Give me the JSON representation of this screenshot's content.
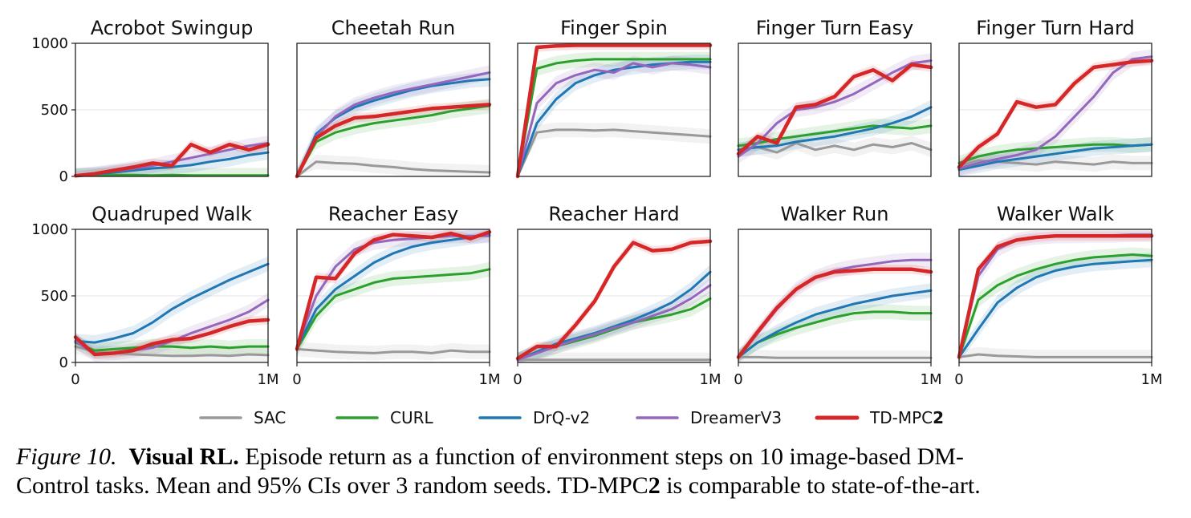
{
  "chart_data": {
    "type": "line",
    "x_ticks": [
      "0",
      "1M"
    ],
    "y_ticks": [
      "0",
      "500",
      "1000"
    ],
    "xlim": [
      0,
      1000000
    ],
    "ylim": [
      0,
      1000
    ],
    "grid": "horizontal",
    "legend_placement": "bottom",
    "series_meta": [
      {
        "name": "SAC",
        "color": "#999999"
      },
      {
        "name": "CURL",
        "color": "#2ca02c"
      },
      {
        "name": "DrQ-v2",
        "color": "#1f77b4"
      },
      {
        "name": "DreamerV3",
        "color": "#9467bd"
      },
      {
        "name": "TD-MPC",
        "suffix": "2",
        "color": "#d62728"
      }
    ],
    "panels": [
      {
        "title": "Acrobot Swingup",
        "x": [
          0,
          0.1,
          0.2,
          0.3,
          0.4,
          0.5,
          0.6,
          0.7,
          0.8,
          0.9,
          1.0
        ],
        "series": [
          {
            "name": "SAC",
            "values": []
          },
          {
            "name": "CURL",
            "values": [
              5,
              8,
              10,
              10,
              8,
              10,
              8,
              8,
              8,
              8,
              8
            ]
          },
          {
            "name": "DrQ-v2",
            "values": [
              5,
              15,
              30,
              45,
              60,
              70,
              85,
              110,
              130,
              160,
              180
            ]
          },
          {
            "name": "DreamerV3",
            "values": [
              5,
              20,
              40,
              60,
              80,
              110,
              140,
              170,
              200,
              230,
              250
            ]
          },
          {
            "name": "TD-MPC2",
            "values": [
              5,
              20,
              45,
              70,
              100,
              80,
              240,
              180,
              240,
              200,
              240
            ]
          }
        ]
      },
      {
        "title": "Cheetah Run",
        "x": [
          0,
          0.1,
          0.2,
          0.3,
          0.4,
          0.5,
          0.6,
          0.7,
          0.8,
          0.9,
          1.0
        ],
        "series": [
          {
            "name": "SAC",
            "values": [
              0,
              110,
              100,
              95,
              80,
              70,
              55,
              45,
              40,
              35,
              30
            ]
          },
          {
            "name": "CURL",
            "values": [
              0,
              260,
              330,
              370,
              400,
              420,
              440,
              460,
              490,
              510,
              530
            ]
          },
          {
            "name": "DrQ-v2",
            "values": [
              0,
              320,
              440,
              520,
              570,
              610,
              650,
              680,
              700,
              720,
              730
            ]
          },
          {
            "name": "DreamerV3",
            "values": [
              0,
              300,
              450,
              540,
              590,
              630,
              660,
              690,
              720,
              750,
              780
            ]
          },
          {
            "name": "TD-MPC2",
            "values": [
              0,
              290,
              380,
              440,
              450,
              470,
              490,
              510,
              520,
              530,
              540
            ]
          }
        ]
      },
      {
        "title": "Finger Spin",
        "x": [
          0,
          0.1,
          0.2,
          0.3,
          0.4,
          0.5,
          0.6,
          0.7,
          0.8,
          0.9,
          1.0
        ],
        "series": [
          {
            "name": "SAC",
            "values": [
              0,
              330,
              350,
              350,
              345,
              350,
              340,
              330,
              320,
              310,
              300
            ]
          },
          {
            "name": "CURL",
            "values": [
              0,
              810,
              850,
              870,
              880,
              880,
              880,
              880,
              880,
              880,
              880
            ]
          },
          {
            "name": "DrQ-v2",
            "values": [
              0,
              400,
              580,
              700,
              760,
              800,
              820,
              840,
              850,
              860,
              860
            ]
          },
          {
            "name": "DreamerV3",
            "values": [
              0,
              550,
              700,
              760,
              800,
              780,
              850,
              820,
              850,
              840,
              820
            ]
          },
          {
            "name": "TD-MPC2",
            "values": [
              0,
              970,
              980,
              985,
              985,
              985,
              985,
              985,
              985,
              985,
              985
            ]
          }
        ]
      },
      {
        "title": "Finger Turn Easy",
        "x": [
          0,
          0.1,
          0.2,
          0.3,
          0.4,
          0.5,
          0.6,
          0.7,
          0.8,
          0.9,
          1.0
        ],
        "series": [
          {
            "name": "SAC",
            "values": [
              200,
              220,
              180,
              250,
              200,
              230,
              200,
              240,
              220,
              250,
              200
            ]
          },
          {
            "name": "CURL",
            "values": [
              230,
              250,
              280,
              300,
              320,
              340,
              360,
              380,
              370,
              360,
              380
            ]
          },
          {
            "name": "DrQ-v2",
            "values": [
              200,
              220,
              230,
              260,
              280,
              300,
              330,
              360,
              400,
              450,
              520
            ]
          },
          {
            "name": "DreamerV3",
            "values": [
              150,
              250,
              400,
              500,
              520,
              560,
              620,
              700,
              780,
              850,
              870
            ]
          },
          {
            "name": "TD-MPC2",
            "values": [
              170,
              300,
              250,
              520,
              540,
              600,
              750,
              800,
              720,
              840,
              820
            ]
          }
        ]
      },
      {
        "title": "Finger Turn Hard",
        "x": [
          0,
          0.1,
          0.2,
          0.3,
          0.4,
          0.5,
          0.6,
          0.7,
          0.8,
          0.9,
          1.0
        ],
        "series": [
          {
            "name": "SAC",
            "values": [
              80,
              120,
              110,
              100,
              90,
              110,
              100,
              90,
              110,
              100,
              100
            ]
          },
          {
            "name": "CURL",
            "values": [
              100,
              150,
              180,
              200,
              210,
              220,
              230,
              240,
              240,
              230,
              240
            ]
          },
          {
            "name": "DrQ-v2",
            "values": [
              50,
              80,
              110,
              130,
              150,
              170,
              190,
              210,
              220,
              230,
              240
            ]
          },
          {
            "name": "DreamerV3",
            "values": [
              60,
              100,
              130,
              160,
              200,
              300,
              450,
              600,
              780,
              880,
              900
            ]
          },
          {
            "name": "TD-MPC2",
            "values": [
              70,
              220,
              320,
              560,
              520,
              540,
              700,
              820,
              840,
              860,
              870
            ]
          }
        ]
      },
      {
        "title": "Quadruped Walk",
        "x": [
          0,
          0.1,
          0.2,
          0.3,
          0.4,
          0.5,
          0.6,
          0.7,
          0.8,
          0.9,
          1.0
        ],
        "series": [
          {
            "name": "SAC",
            "values": [
              120,
              80,
              70,
              60,
              55,
              50,
              50,
              55,
              50,
              60,
              55
            ]
          },
          {
            "name": "CURL",
            "values": [
              150,
              90,
              100,
              110,
              120,
              120,
              110,
              120,
              110,
              120,
              120
            ]
          },
          {
            "name": "DrQ-v2",
            "values": [
              160,
              150,
              180,
              220,
              300,
              400,
              480,
              550,
              620,
              680,
              740
            ]
          },
          {
            "name": "DreamerV3",
            "values": [
              160,
              60,
              70,
              90,
              110,
              160,
              220,
              270,
              320,
              380,
              470
            ]
          },
          {
            "name": "TD-MPC2",
            "values": [
              190,
              60,
              70,
              90,
              140,
              170,
              180,
              220,
              270,
              310,
              320
            ]
          }
        ]
      },
      {
        "title": "Reacher Easy",
        "x": [
          0,
          0.1,
          0.2,
          0.3,
          0.4,
          0.5,
          0.6,
          0.7,
          0.8,
          0.9,
          1.0
        ],
        "series": [
          {
            "name": "SAC",
            "values": [
              100,
              90,
              80,
              75,
              70,
              80,
              80,
              70,
              90,
              80,
              80
            ]
          },
          {
            "name": "CURL",
            "values": [
              100,
              350,
              500,
              550,
              600,
              630,
              640,
              650,
              660,
              670,
              700
            ]
          },
          {
            "name": "DrQ-v2",
            "values": [
              110,
              400,
              550,
              650,
              750,
              820,
              870,
              900,
              920,
              940,
              960
            ]
          },
          {
            "name": "DreamerV3",
            "values": [
              120,
              500,
              720,
              850,
              900,
              920,
              930,
              940,
              950,
              950,
              950
            ]
          },
          {
            "name": "TD-MPC2",
            "values": [
              100,
              640,
              630,
              820,
              920,
              960,
              950,
              940,
              970,
              930,
              980
            ]
          }
        ]
      },
      {
        "title": "Reacher Hard",
        "x": [
          0,
          0.1,
          0.2,
          0.3,
          0.4,
          0.5,
          0.6,
          0.7,
          0.8,
          0.9,
          1.0
        ],
        "series": [
          {
            "name": "SAC",
            "values": [
              20,
              20,
              20,
              20,
              20,
              20,
              20,
              20,
              20,
              20,
              20
            ]
          },
          {
            "name": "CURL",
            "values": [
              20,
              80,
              120,
              160,
              200,
              250,
              300,
              330,
              360,
              400,
              480
            ]
          },
          {
            "name": "DrQ-v2",
            "values": [
              20,
              80,
              140,
              180,
              220,
              270,
              320,
              380,
              450,
              550,
              680
            ]
          },
          {
            "name": "DreamerV3",
            "values": [
              20,
              70,
              120,
              170,
              210,
              260,
              300,
              350,
              400,
              480,
              580
            ]
          },
          {
            "name": "TD-MPC2",
            "values": [
              30,
              120,
              120,
              280,
              460,
              720,
              900,
              840,
              850,
              900,
              910
            ]
          }
        ]
      },
      {
        "title": "Walker Run",
        "x": [
          0,
          0.1,
          0.2,
          0.3,
          0.4,
          0.5,
          0.6,
          0.7,
          0.8,
          0.9,
          1.0
        ],
        "series": [
          {
            "name": "SAC",
            "values": [
              40,
              40,
              35,
              35,
              35,
              35,
              35,
              35,
              35,
              35,
              35
            ]
          },
          {
            "name": "CURL",
            "values": [
              40,
              150,
              210,
              260,
              300,
              340,
              370,
              380,
              380,
              370,
              370
            ]
          },
          {
            "name": "DrQ-v2",
            "values": [
              40,
              150,
              230,
              300,
              360,
              400,
              440,
              470,
              500,
              520,
              540
            ]
          },
          {
            "name": "DreamerV3",
            "values": [
              40,
              220,
              400,
              550,
              640,
              690,
              720,
              740,
              760,
              770,
              770
            ]
          },
          {
            "name": "TD-MPC2",
            "values": [
              40,
              230,
              410,
              550,
              640,
              680,
              690,
              700,
              700,
              700,
              680
            ]
          }
        ]
      },
      {
        "title": "Walker Walk",
        "x": [
          0,
          0.1,
          0.2,
          0.3,
          0.4,
          0.5,
          0.6,
          0.7,
          0.8,
          0.9,
          1.0
        ],
        "series": [
          {
            "name": "SAC",
            "values": [
              40,
              60,
              50,
              45,
              40,
              40,
              40,
              40,
              40,
              40,
              40
            ]
          },
          {
            "name": "CURL",
            "values": [
              40,
              470,
              580,
              650,
              700,
              740,
              770,
              790,
              800,
              810,
              800
            ]
          },
          {
            "name": "DrQ-v2",
            "values": [
              40,
              250,
              450,
              560,
              640,
              690,
              720,
              740,
              750,
              760,
              770
            ]
          },
          {
            "name": "DreamerV3",
            "values": [
              40,
              650,
              850,
              920,
              940,
              950,
              950,
              955,
              955,
              960,
              960
            ]
          },
          {
            "name": "TD-MPC2",
            "values": [
              40,
              700,
              870,
              920,
              940,
              950,
              950,
              950,
              950,
              950,
              950
            ]
          }
        ]
      }
    ]
  },
  "caption": {
    "label": "Figure 10.",
    "heading": "Visual RL.",
    "line1_rest": "Episode return as a function of environment steps on 10 image-based DM-",
    "line2_a": "Control tasks. Mean and 95% CIs over 3 random seeds. TD-MPC",
    "line2_bold": "2",
    "line2_b": " is comparable to state-of-the-art."
  }
}
